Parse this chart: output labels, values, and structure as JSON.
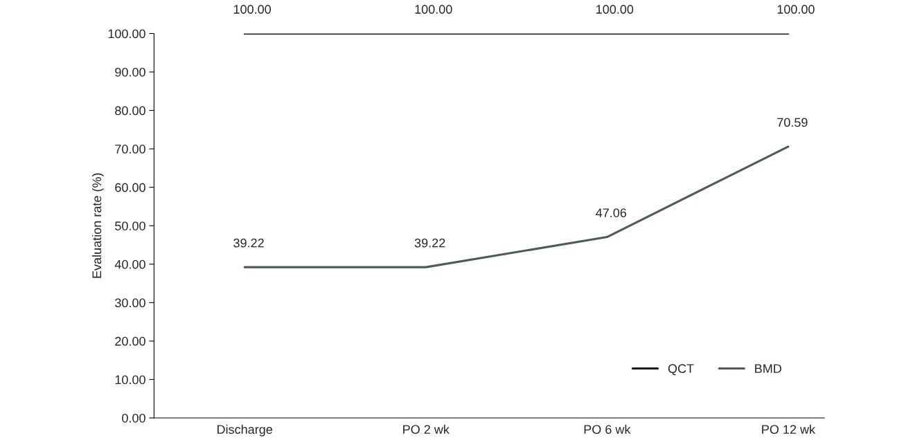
{
  "chart_data": {
    "type": "line",
    "ylabel": "Evaluation rate (%)",
    "categories": [
      "Discharge",
      "PO 2 wk",
      "PO 6 wk",
      "PO 12 wk"
    ],
    "series": [
      {
        "name": "QCT",
        "color": "#1a1a1a",
        "values": [
          100,
          100,
          100,
          100
        ],
        "value_labels": [
          "100.00",
          "100.00",
          "100.00",
          "100.00"
        ]
      },
      {
        "name": "BMD",
        "color": "#4d5a55",
        "values": [
          39.22,
          39.22,
          47.06,
          70.59
        ],
        "value_labels": [
          "39.22",
          "39.22",
          "47.06",
          "70.59"
        ]
      }
    ],
    "ylim": [
      0,
      100
    ],
    "yticks": [
      {
        "value": 0,
        "label": "0.00"
      },
      {
        "value": 10,
        "label": "10.00"
      },
      {
        "value": 20,
        "label": "20.00"
      },
      {
        "value": 30,
        "label": "30.00"
      },
      {
        "value": 40,
        "label": "40.00"
      },
      {
        "value": 50,
        "label": "50.00"
      },
      {
        "value": 60,
        "label": "60.00"
      },
      {
        "value": 70,
        "label": "70.00"
      },
      {
        "value": 80,
        "label": "80.00"
      },
      {
        "value": 90,
        "label": "90.00"
      },
      {
        "value": 100,
        "label": "100.00"
      }
    ],
    "legend": "bottom right",
    "grid": false,
    "marker": "none",
    "line_style": "solid"
  }
}
